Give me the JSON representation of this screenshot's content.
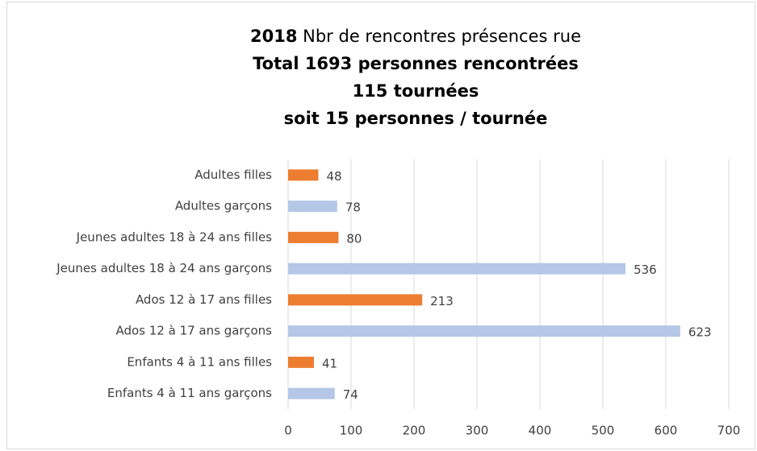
{
  "chart_data": {
    "type": "hbar",
    "title": [
      [
        "2018",
        "Nbr de rencontres présences rue"
      ],
      [
        "Total 1693 personnes rencontrées"
      ],
      [
        "115 tournées"
      ],
      [
        "soit 15 personnes / tournée"
      ]
    ],
    "categories": [
      "Adultes filles",
      "Adultes garçons",
      "Jeunes adultes 18 à 24 ans filles",
      "Jeunes adultes 18 à 24 ans garçons",
      "Ados 12 à 17 ans filles",
      "Ados 12 à 17 ans garçons",
      "Enfants 4 à 11 ans filles",
      "Enfants 4 à 11 ans garçons"
    ],
    "values": [
      48,
      78,
      80,
      536,
      213,
      623,
      41,
      74
    ],
    "colors": [
      "#ed7d31",
      "#b4c7e7",
      "#ed7d31",
      "#b4c7e7",
      "#ed7d31",
      "#b4c7e7",
      "#ed7d31",
      "#b4c7e7"
    ],
    "xlim": [
      0,
      700
    ],
    "xticks": [
      0,
      100,
      200,
      300,
      400,
      500,
      600,
      700
    ],
    "grid": true
  }
}
